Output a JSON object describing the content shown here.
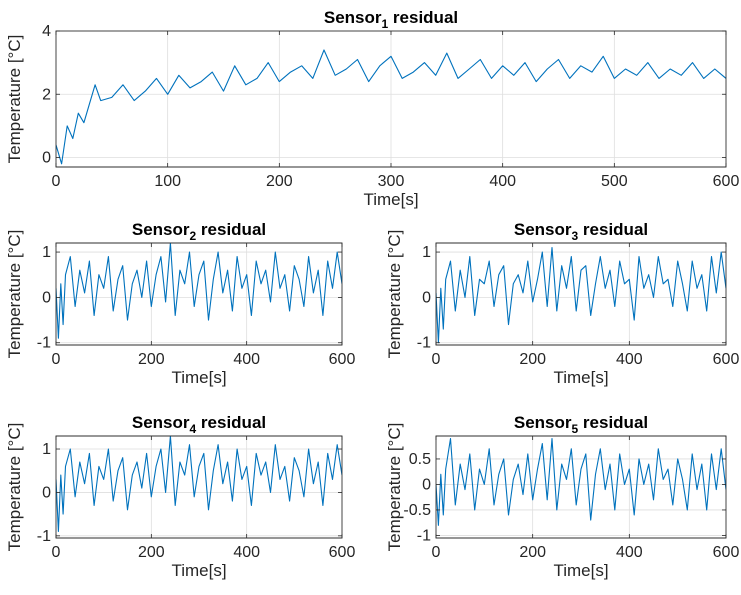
{
  "figure": {
    "line_color": "#0072BD",
    "panels": [
      {
        "key": "s1",
        "title_prefix": "Sensor",
        "title_sub": "1",
        "title_suffix": " residual",
        "xlabel": "Time[s]",
        "ylabel": "Temperature [°C]",
        "xlim": [
          0,
          600
        ],
        "ylim": [
          -0.3,
          4
        ],
        "xticks": [
          0,
          100,
          200,
          300,
          400,
          500,
          600
        ],
        "yticks": [
          0,
          2,
          4
        ],
        "xticklabels": [
          "0",
          "100",
          "200",
          "300",
          "400",
          "500",
          "600"
        ],
        "yticklabels": [
          "0",
          "2",
          "4"
        ]
      },
      {
        "key": "s2",
        "title_prefix": "Sensor",
        "title_sub": "2",
        "title_suffix": " residual",
        "xlabel": "Time[s]",
        "ylabel": "Temperature [°C]",
        "xlim": [
          0,
          600
        ],
        "ylim": [
          -1.05,
          1.2
        ],
        "xticks": [
          0,
          200,
          400,
          600
        ],
        "yticks": [
          -1,
          0,
          1
        ],
        "xticklabels": [
          "0",
          "200",
          "400",
          "600"
        ],
        "yticklabels": [
          "-1",
          "0",
          "1"
        ]
      },
      {
        "key": "s3",
        "title_prefix": "Sensor",
        "title_sub": "3",
        "title_suffix": " residual",
        "xlabel": "Time[s]",
        "ylabel": "Temperature [°C]",
        "xlim": [
          0,
          600
        ],
        "ylim": [
          -1.05,
          1.2
        ],
        "xticks": [
          0,
          200,
          400,
          600
        ],
        "yticks": [
          -1,
          0,
          1
        ],
        "xticklabels": [
          "0",
          "200",
          "400",
          "600"
        ],
        "yticklabels": [
          "-1",
          "0",
          "1"
        ]
      },
      {
        "key": "s4",
        "title_prefix": "Sensor",
        "title_sub": "4",
        "title_suffix": " residual",
        "xlabel": "Time[s]",
        "ylabel": "Temperature [°C]",
        "xlim": [
          0,
          600
        ],
        "ylim": [
          -1.05,
          1.3
        ],
        "xticks": [
          0,
          200,
          400,
          600
        ],
        "yticks": [
          -1,
          0,
          1
        ],
        "xticklabels": [
          "0",
          "200",
          "400",
          "600"
        ],
        "yticklabels": [
          "-1",
          "0",
          "1"
        ]
      },
      {
        "key": "s5",
        "title_prefix": "Sensor",
        "title_sub": "5",
        "title_suffix": " residual",
        "xlabel": "Time[s]",
        "ylabel": "Temperature [°C]",
        "xlim": [
          0,
          600
        ],
        "ylim": [
          -1.05,
          0.95
        ],
        "xticks": [
          0,
          200,
          400,
          600
        ],
        "yticks": [
          -1,
          -0.5,
          0,
          0.5
        ],
        "xticklabels": [
          "0",
          "200",
          "400",
          "600"
        ],
        "yticklabels": [
          "-1",
          "-0.5",
          "0",
          "0.5"
        ]
      }
    ]
  },
  "chart_data": [
    {
      "type": "line",
      "title": "Sensor1 residual",
      "xlabel": "Time[s]",
      "ylabel": "Temperature [°C]",
      "xlim": [
        0,
        600
      ],
      "ylim": [
        -0.3,
        4
      ],
      "grid": true,
      "x": [
        0,
        5,
        10,
        15,
        20,
        25,
        30,
        35,
        40,
        50,
        60,
        70,
        80,
        90,
        100,
        110,
        120,
        130,
        140,
        150,
        160,
        170,
        180,
        190,
        200,
        210,
        220,
        230,
        240,
        250,
        260,
        270,
        280,
        290,
        300,
        310,
        320,
        330,
        340,
        350,
        360,
        370,
        380,
        390,
        400,
        410,
        420,
        430,
        440,
        450,
        460,
        470,
        480,
        490,
        500,
        510,
        520,
        530,
        540,
        550,
        560,
        570,
        580,
        590,
        600
      ],
      "y": [
        0.4,
        -0.2,
        1.0,
        0.6,
        1.4,
        1.1,
        1.7,
        2.3,
        1.8,
        1.9,
        2.3,
        1.8,
        2.1,
        2.5,
        2.0,
        2.6,
        2.2,
        2.4,
        2.7,
        2.1,
        2.9,
        2.3,
        2.5,
        3.0,
        2.4,
        2.7,
        2.9,
        2.5,
        3.4,
        2.6,
        2.8,
        3.1,
        2.4,
        2.9,
        3.2,
        2.5,
        2.7,
        3.0,
        2.6,
        3.3,
        2.5,
        2.8,
        3.1,
        2.5,
        2.9,
        2.6,
        3.0,
        2.4,
        2.8,
        3.1,
        2.5,
        2.9,
        2.7,
        3.2,
        2.5,
        2.8,
        2.6,
        3.0,
        2.5,
        2.8,
        2.6,
        3.0,
        2.5,
        2.8,
        2.5
      ]
    },
    {
      "type": "line",
      "title": "Sensor2 residual",
      "xlabel": "Time[s]",
      "ylabel": "Temperature [°C]",
      "xlim": [
        0,
        600
      ],
      "ylim": [
        -1.05,
        1.2
      ],
      "grid": true,
      "x": [
        0,
        5,
        10,
        15,
        20,
        30,
        40,
        50,
        60,
        70,
        80,
        90,
        100,
        110,
        120,
        130,
        140,
        150,
        160,
        170,
        180,
        190,
        200,
        210,
        220,
        230,
        240,
        250,
        260,
        270,
        280,
        290,
        300,
        310,
        320,
        330,
        340,
        350,
        360,
        370,
        380,
        390,
        400,
        410,
        420,
        430,
        440,
        450,
        460,
        470,
        480,
        490,
        500,
        510,
        520,
        530,
        540,
        550,
        560,
        570,
        580,
        590,
        600
      ],
      "y": [
        0.2,
        -0.9,
        0.3,
        -0.6,
        0.5,
        0.9,
        -0.2,
        0.6,
        0.1,
        0.8,
        -0.4,
        0.5,
        0.2,
        0.9,
        -0.3,
        0.4,
        0.7,
        -0.5,
        0.3,
        0.6,
        0.0,
        0.8,
        -0.2,
        0.5,
        0.9,
        -0.1,
        1.2,
        -0.4,
        0.6,
        0.3,
        1.0,
        -0.2,
        0.5,
        0.8,
        -0.5,
        0.4,
        1.0,
        0.1,
        0.6,
        -0.3,
        0.9,
        0.2,
        0.5,
        -0.4,
        0.8,
        0.3,
        0.6,
        -0.1,
        1.0,
        0.2,
        0.5,
        -0.3,
        0.7,
        0.4,
        -0.2,
        0.9,
        0.1,
        0.6,
        -0.4,
        0.8,
        0.2,
        1.0,
        0.3
      ]
    },
    {
      "type": "line",
      "title": "Sensor3 residual",
      "xlabel": "Time[s]",
      "ylabel": "Temperature [°C]",
      "xlim": [
        0,
        600
      ],
      "ylim": [
        -1.05,
        1.2
      ],
      "grid": true,
      "x": [
        0,
        5,
        10,
        15,
        20,
        30,
        40,
        50,
        60,
        70,
        80,
        90,
        100,
        110,
        120,
        130,
        140,
        150,
        160,
        170,
        180,
        190,
        200,
        210,
        220,
        230,
        240,
        250,
        260,
        270,
        280,
        290,
        300,
        310,
        320,
        330,
        340,
        350,
        360,
        370,
        380,
        390,
        400,
        410,
        420,
        430,
        440,
        450,
        460,
        470,
        480,
        490,
        500,
        510,
        520,
        530,
        540,
        550,
        560,
        570,
        580,
        590,
        600
      ],
      "y": [
        0.1,
        -1.0,
        0.2,
        -0.7,
        0.4,
        0.8,
        -0.3,
        0.6,
        0.0,
        0.9,
        -0.4,
        0.4,
        0.3,
        0.8,
        -0.2,
        0.5,
        0.7,
        -0.6,
        0.3,
        0.5,
        0.1,
        0.8,
        -0.1,
        0.4,
        1.0,
        -0.2,
        1.1,
        -0.3,
        0.7,
        0.2,
        0.9,
        -0.3,
        0.6,
        0.7,
        -0.4,
        0.3,
        0.9,
        0.2,
        0.6,
        -0.2,
        0.8,
        0.3,
        0.4,
        -0.5,
        0.9,
        0.2,
        0.5,
        0.0,
        0.9,
        0.3,
        0.4,
        -0.2,
        0.8,
        0.3,
        -0.3,
        0.8,
        0.2,
        0.5,
        -0.3,
        0.9,
        0.1,
        1.0,
        0.2
      ]
    },
    {
      "type": "line",
      "title": "Sensor4 residual",
      "xlabel": "Time[s]",
      "ylabel": "Temperature [°C]",
      "xlim": [
        0,
        600
      ],
      "ylim": [
        -1.05,
        1.3
      ],
      "grid": true,
      "x": [
        0,
        5,
        10,
        15,
        20,
        30,
        40,
        50,
        60,
        70,
        80,
        90,
        100,
        110,
        120,
        130,
        140,
        150,
        160,
        170,
        180,
        190,
        200,
        210,
        220,
        230,
        240,
        250,
        260,
        270,
        280,
        290,
        300,
        310,
        320,
        330,
        340,
        350,
        360,
        370,
        380,
        390,
        400,
        410,
        420,
        430,
        440,
        450,
        460,
        470,
        480,
        490,
        500,
        510,
        520,
        530,
        540,
        550,
        560,
        570,
        580,
        590,
        600
      ],
      "y": [
        0.3,
        -0.9,
        0.4,
        -0.5,
        0.6,
        1.0,
        -0.1,
        0.7,
        0.2,
        0.9,
        -0.3,
        0.6,
        0.3,
        1.0,
        -0.2,
        0.5,
        0.8,
        -0.4,
        0.4,
        0.7,
        0.1,
        0.9,
        -0.1,
        0.6,
        1.0,
        0.0,
        1.3,
        -0.3,
        0.7,
        0.4,
        1.1,
        -0.1,
        0.6,
        0.9,
        -0.4,
        0.5,
        1.1,
        0.2,
        0.7,
        -0.2,
        1.0,
        0.3,
        0.6,
        -0.3,
        0.9,
        0.4,
        0.7,
        0.0,
        1.1,
        0.3,
        0.6,
        -0.2,
        0.8,
        0.5,
        -0.1,
        1.0,
        0.2,
        0.7,
        -0.3,
        0.9,
        0.3,
        1.1,
        0.4
      ]
    },
    {
      "type": "line",
      "title": "Sensor5 residual",
      "xlabel": "Time[s]",
      "ylabel": "Temperature [°C]",
      "xlim": [
        0,
        600
      ],
      "ylim": [
        -1.05,
        0.95
      ],
      "grid": true,
      "x": [
        0,
        5,
        10,
        15,
        20,
        30,
        40,
        50,
        60,
        70,
        80,
        90,
        100,
        110,
        120,
        130,
        140,
        150,
        160,
        170,
        180,
        190,
        200,
        210,
        220,
        230,
        240,
        250,
        260,
        270,
        280,
        290,
        300,
        310,
        320,
        330,
        340,
        350,
        360,
        370,
        380,
        390,
        400,
        410,
        420,
        430,
        440,
        450,
        460,
        470,
        480,
        490,
        500,
        510,
        520,
        530,
        540,
        550,
        560,
        570,
        580,
        590,
        600
      ],
      "y": [
        0.0,
        -0.8,
        0.2,
        -0.6,
        0.3,
        0.9,
        -0.4,
        0.4,
        -0.1,
        0.6,
        -0.5,
        0.3,
        0.0,
        0.7,
        -0.4,
        0.2,
        0.5,
        -0.6,
        0.1,
        0.4,
        -0.2,
        0.6,
        -0.3,
        0.3,
        0.8,
        -0.3,
        0.9,
        -0.5,
        0.4,
        0.1,
        0.7,
        -0.4,
        0.3,
        0.6,
        -0.7,
        0.2,
        0.7,
        -0.1,
        0.4,
        -0.5,
        0.6,
        0.0,
        0.3,
        -0.6,
        0.5,
        0.0,
        0.4,
        -0.3,
        0.7,
        0.1,
        0.3,
        -0.4,
        0.5,
        0.1,
        -0.5,
        0.6,
        -0.1,
        0.4,
        -0.5,
        0.6,
        -0.1,
        0.7,
        -0.1
      ]
    }
  ]
}
